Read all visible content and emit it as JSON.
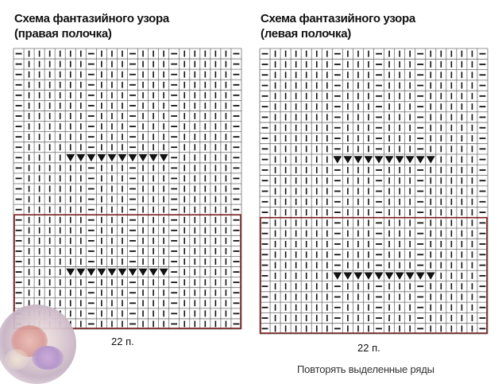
{
  "charts": [
    {
      "title_line1": "Схема фантазийного узора",
      "title_line2": "(правая полочка)",
      "count_label": "22 п.",
      "columns": 22,
      "rows": 27,
      "vertical_purl_columns": [
        0,
        7,
        11,
        15,
        21
      ],
      "decrease_columns": [
        5,
        6,
        7,
        8,
        9,
        10,
        11,
        12,
        13,
        14
      ],
      "decrease_rows": [
        10,
        21
      ],
      "repeat_from_row": 16
    },
    {
      "title_line1": "Схема фантазийного узора",
      "title_line2": "(левая полочка)",
      "count_label": "22 п.",
      "columns": 22,
      "rows": 27,
      "vertical_purl_columns": [
        0,
        7,
        11,
        15,
        21
      ],
      "decrease_columns": [
        7,
        8,
        9,
        10,
        11,
        12,
        13,
        14,
        15,
        16
      ],
      "decrease_rows": [
        10,
        21
      ],
      "repeat_from_row": 16
    }
  ],
  "footer_note": "Повторять выделенные ряды",
  "colors": {
    "grid_line": "#6f6f6f",
    "grid_bg": "#ffffff",
    "symbol": "#111111",
    "repeat_frame": "#7a1f1f"
  },
  "symbols": {
    "knit": "vertical-bar",
    "purl": "horizontal-dash",
    "decrease": "down-triangle"
  }
}
